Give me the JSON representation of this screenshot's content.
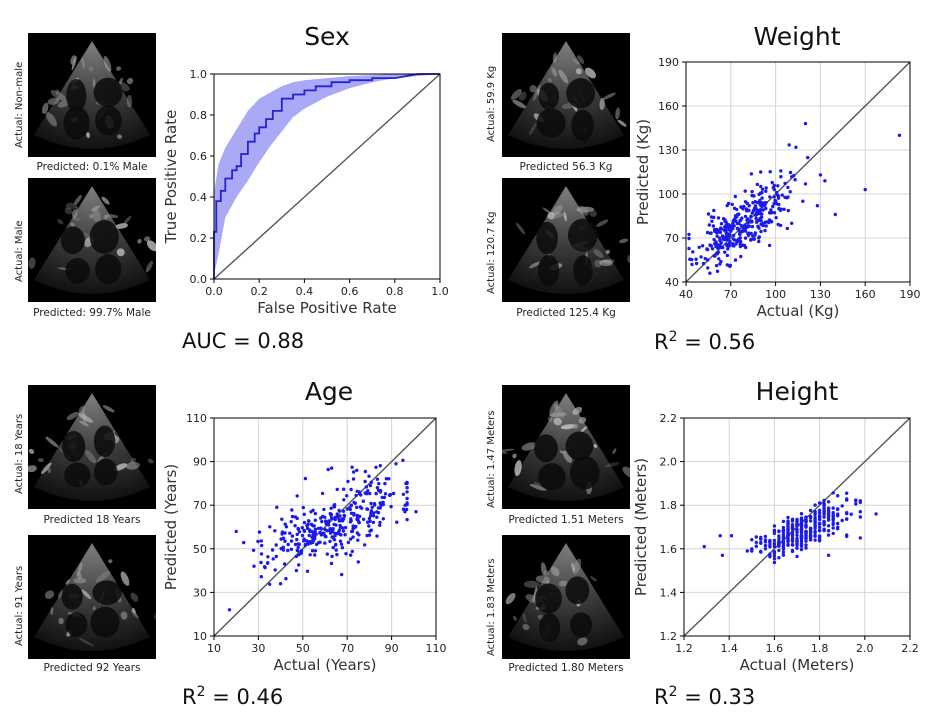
{
  "colors": {
    "scatter": "#1a1aee",
    "roc": "#2323d6",
    "band": "#8c8cf2",
    "diag": "#555555",
    "grid": "#d4d4d4"
  },
  "panels": {
    "sex": {
      "title": "Sex",
      "metric": "AUC = 0.88",
      "img1": {
        "actual": "Actual: Non-male",
        "pred": "Predicted: 0.1% Male"
      },
      "img2": {
        "actual": "Actual: Male",
        "pred": "Predicted: 99.7% Male"
      }
    },
    "weight": {
      "title": "Weight",
      "metric_prefix": "R",
      "metric_sup": "2",
      "metric_value": " = 0.56",
      "img1": {
        "actual": "Actual: 59.9 Kg",
        "pred": "Predicted 56.3 Kg"
      },
      "img2": {
        "actual": "Actual: 120.7 Kg",
        "pred": "Predicted 125.4 Kg"
      }
    },
    "age": {
      "title": "Age",
      "metric_prefix": "R",
      "metric_sup": "2",
      "metric_value": " = 0.46",
      "img1": {
        "actual": "Actual: 18 Years",
        "pred": "Predicted 18 Years"
      },
      "img2": {
        "actual": "Actual: 91 Years",
        "pred": "Predicted 92 Years"
      }
    },
    "height": {
      "title": "Height",
      "metric_prefix": "R",
      "metric_sup": "2",
      "metric_value": " = 0.33",
      "img1": {
        "actual": "Actual: 1.47 Meters",
        "pred": "Predicted 1.51 Meters"
      },
      "img2": {
        "actual": "Actual: 1.83 Meters",
        "pred": "Predicted 1.80 Meters"
      }
    }
  },
  "chart_data": [
    {
      "id": "sex",
      "type": "line",
      "title": "Sex",
      "xlabel": "False Positive Rate",
      "ylabel": "True Positive Rate",
      "xlim": [
        0,
        1
      ],
      "ylim": [
        0,
        1
      ],
      "xticks": [
        0.0,
        0.2,
        0.4,
        0.6,
        0.8,
        1.0
      ],
      "yticks": [
        0.0,
        0.2,
        0.4,
        0.6,
        0.8,
        1.0
      ],
      "tick_labels_x": [
        "0.0",
        "0.2",
        "0.4",
        "0.6",
        "0.8",
        "1.0"
      ],
      "tick_labels_y": [
        "0.0",
        "0.2",
        "0.4",
        "0.6",
        "0.8",
        "1.0"
      ],
      "grid": false,
      "series": [
        {
          "name": "ROC",
          "x": [
            0,
            0,
            0.01,
            0.01,
            0.03,
            0.03,
            0.05,
            0.05,
            0.08,
            0.08,
            0.1,
            0.1,
            0.12,
            0.12,
            0.15,
            0.15,
            0.18,
            0.18,
            0.2,
            0.2,
            0.23,
            0.23,
            0.26,
            0.26,
            0.3,
            0.3,
            0.35,
            0.35,
            0.4,
            0.4,
            0.45,
            0.45,
            0.52,
            0.52,
            0.6,
            0.6,
            0.7,
            0.7,
            0.8,
            0.85,
            0.9,
            1.0
          ],
          "y": [
            0,
            0.23,
            0.23,
            0.38,
            0.38,
            0.43,
            0.43,
            0.49,
            0.49,
            0.53,
            0.53,
            0.55,
            0.55,
            0.61,
            0.61,
            0.67,
            0.67,
            0.71,
            0.71,
            0.74,
            0.74,
            0.78,
            0.78,
            0.82,
            0.82,
            0.88,
            0.88,
            0.9,
            0.9,
            0.92,
            0.92,
            0.94,
            0.94,
            0.96,
            0.96,
            0.97,
            0.97,
            0.98,
            0.98,
            0.99,
            1.0,
            1.0
          ]
        },
        {
          "name": "CI upper",
          "x": [
            0,
            0.02,
            0.05,
            0.1,
            0.15,
            0.2,
            0.25,
            0.3,
            0.35,
            0.4,
            0.5,
            0.6,
            0.7,
            0.8,
            0.9,
            1.0
          ],
          "y": [
            0.42,
            0.56,
            0.64,
            0.73,
            0.82,
            0.88,
            0.91,
            0.94,
            0.96,
            0.97,
            0.98,
            0.99,
            0.995,
            1.0,
            1.0,
            1.0
          ]
        },
        {
          "name": "CI lower",
          "x": [
            0,
            0.02,
            0.05,
            0.1,
            0.15,
            0.2,
            0.25,
            0.3,
            0.35,
            0.4,
            0.5,
            0.6,
            0.7,
            0.8,
            0.9,
            1.0
          ],
          "y": [
            0.02,
            0.12,
            0.3,
            0.4,
            0.48,
            0.57,
            0.65,
            0.72,
            0.79,
            0.83,
            0.89,
            0.93,
            0.96,
            0.98,
            0.99,
            1.0
          ]
        },
        {
          "name": "chance",
          "x": [
            0,
            1
          ],
          "y": [
            0,
            1
          ]
        }
      ]
    },
    {
      "id": "weight",
      "type": "scatter",
      "title": "Weight",
      "xlabel": "Actual (Kg)",
      "ylabel": "Predicted (Kg)",
      "xlim": [
        40,
        190
      ],
      "ylim": [
        40,
        190
      ],
      "xticks": [
        40,
        70,
        100,
        130,
        160,
        190
      ],
      "yticks": [
        40,
        70,
        100,
        130,
        160,
        190
      ],
      "tick_labels_x": [
        "40",
        "70",
        "100",
        "130",
        "160",
        "190"
      ],
      "tick_labels_y": [
        "40",
        "70",
        "100",
        "130",
        "160",
        "190"
      ],
      "grid": true,
      "identity_line": true,
      "n_points": 330,
      "seed": 11,
      "cloud": {
        "x_mean": 78,
        "x_sd": 15,
        "x_min": 42,
        "x_max": 135,
        "slope": 0.65,
        "intercept": 28,
        "noise_sd": 10
      },
      "outliers": [
        [
          120,
          148
        ],
        [
          183,
          140
        ],
        [
          130,
          113
        ],
        [
          133,
          109
        ],
        [
          140,
          86
        ],
        [
          160,
          103
        ],
        [
          128,
          92
        ],
        [
          44,
          52
        ],
        [
          56,
          46
        ],
        [
          90,
          115
        ]
      ]
    },
    {
      "id": "age",
      "type": "scatter",
      "title": "Age",
      "xlabel": "Actual (Years)",
      "ylabel": "Predicted (Years)",
      "xlim": [
        10,
        110
      ],
      "ylim": [
        10,
        110
      ],
      "xticks": [
        10,
        30,
        50,
        70,
        90,
        110
      ],
      "yticks": [
        10,
        30,
        50,
        70,
        90,
        110
      ],
      "tick_labels_x": [
        "10",
        "30",
        "50",
        "70",
        "90",
        "110"
      ],
      "tick_labels_y": [
        "10",
        "30",
        "50",
        "70",
        "90",
        "110"
      ],
      "grid": true,
      "identity_line": true,
      "n_points": 340,
      "seed": 7,
      "cloud": {
        "x_mean": 65,
        "x_sd": 16,
        "x_min": 19,
        "x_max": 97,
        "slope": 0.45,
        "intercept": 33,
        "noise_sd": 8
      },
      "outliers": [
        [
          17,
          22
        ],
        [
          20,
          58
        ],
        [
          63,
          87
        ],
        [
          92,
          89
        ],
        [
          101,
          67
        ],
        [
          96,
          67
        ],
        [
          40,
          34
        ],
        [
          75,
          44
        ],
        [
          28,
          42
        ]
      ]
    },
    {
      "id": "height",
      "type": "scatter",
      "title": "Height",
      "xlabel": "Actual (Meters)",
      "ylabel": "Predicted (Meters)",
      "xlim": [
        1.2,
        2.2
      ],
      "ylim": [
        1.2,
        2.2
      ],
      "xticks": [
        1.2,
        1.4,
        1.6,
        1.8,
        2.0,
        2.2
      ],
      "yticks": [
        1.2,
        1.4,
        1.6,
        1.8,
        2.0,
        2.2
      ],
      "tick_labels_x": [
        "1.2",
        "1.4",
        "1.6",
        "1.8",
        "2.0",
        "2.2"
      ],
      "tick_labels_y": [
        "1.2",
        "1.4",
        "1.6",
        "1.8",
        "2.0",
        "2.2"
      ],
      "grid": true,
      "identity_line": true,
      "n_points": 330,
      "seed": 5,
      "x_step": 0.02,
      "cloud": {
        "x_mean": 1.72,
        "x_sd": 0.1,
        "x_min": 1.48,
        "x_max": 1.98,
        "slope": 0.4,
        "intercept": 1.0,
        "noise_sd": 0.04
      },
      "outliers": [
        [
          1.29,
          1.61
        ],
        [
          1.37,
          1.57
        ],
        [
          1.36,
          1.66
        ],
        [
          1.41,
          1.66
        ],
        [
          2.05,
          1.76
        ],
        [
          1.96,
          1.82
        ],
        [
          1.98,
          1.82
        ],
        [
          1.98,
          1.65
        ],
        [
          1.84,
          1.57
        ],
        [
          1.78,
          1.64
        ]
      ]
    }
  ]
}
